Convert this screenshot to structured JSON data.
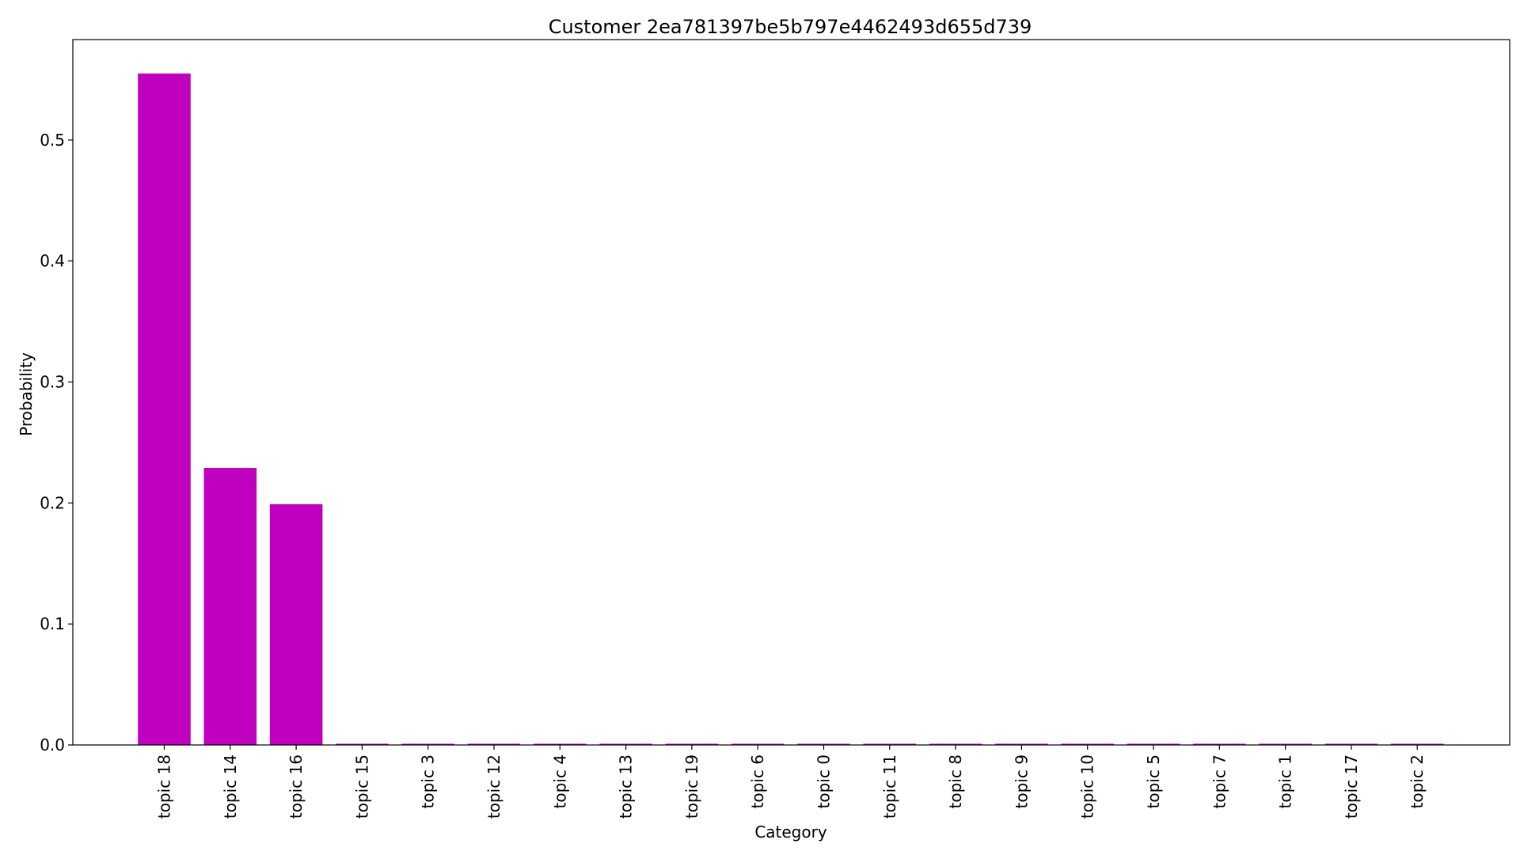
{
  "chart_data": {
    "type": "bar",
    "title": "Customer 2ea781397be5b797e4462493d655d739",
    "xlabel": "Category",
    "ylabel": "Probability",
    "categories": [
      "topic 18",
      "topic 14",
      "topic 16",
      "topic 15",
      "topic 3",
      "topic 12",
      "topic 4",
      "topic 13",
      "topic 19",
      "topic 6",
      "topic 0",
      "topic 11",
      "topic 8",
      "topic 9",
      "topic 10",
      "topic 5",
      "topic 7",
      "topic 1",
      "topic 17",
      "topic 2"
    ],
    "values": [
      0.555,
      0.229,
      0.199,
      0.001,
      0.001,
      0.001,
      0.001,
      0.001,
      0.001,
      0.001,
      0.001,
      0.001,
      0.001,
      0.001,
      0.001,
      0.001,
      0.001,
      0.001,
      0.001,
      0.001
    ],
    "ylim": [
      0,
      0.583
    ],
    "yticks": [
      0.0,
      0.1,
      0.2,
      0.3,
      0.4,
      0.5
    ],
    "ytick_labels": [
      "0.0",
      "0.1",
      "0.2",
      "0.3",
      "0.4",
      "0.5"
    ],
    "bar_color": "#bf00bf",
    "grid": false,
    "legend": "none"
  }
}
